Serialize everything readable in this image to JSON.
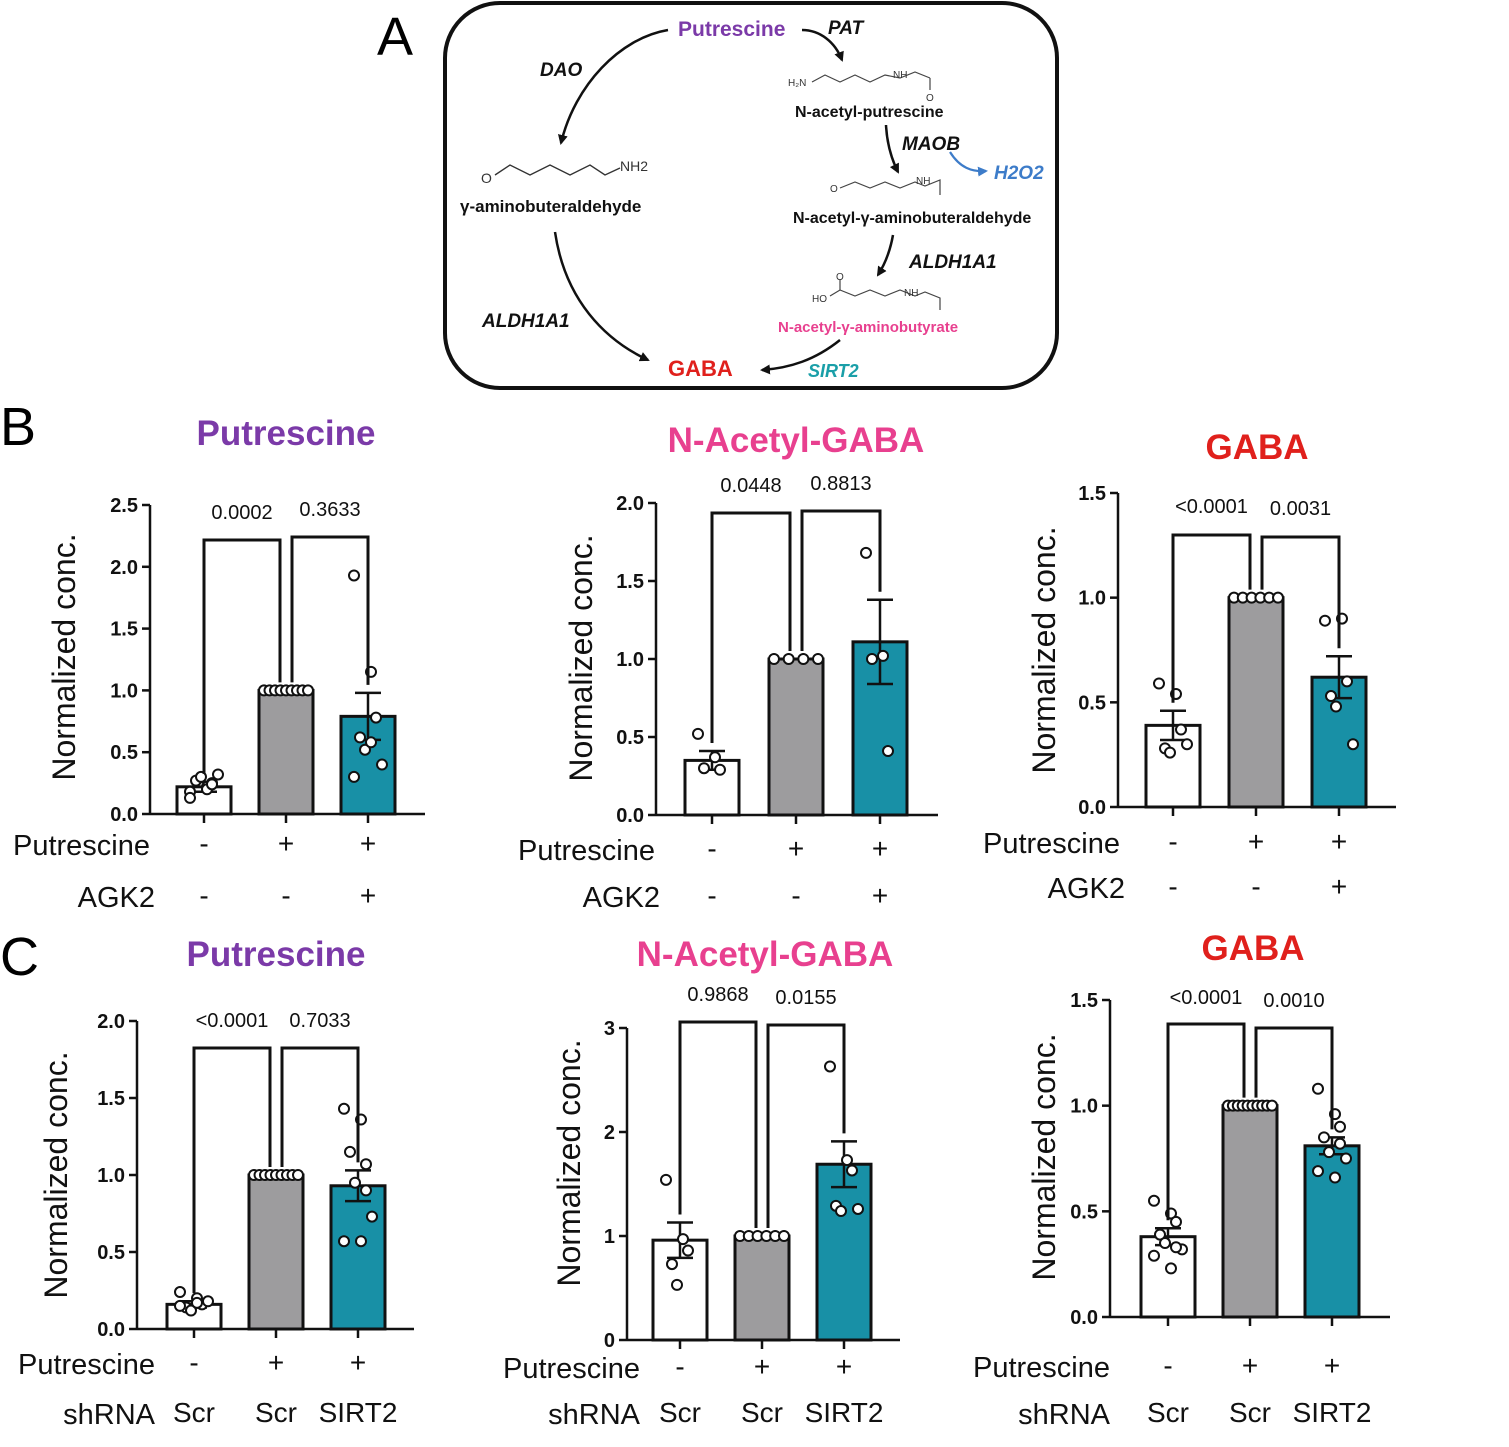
{
  "panel_letters": {
    "a": "A",
    "b": "B",
    "c": "C"
  },
  "pathway": {
    "putrescine": "Putrescine",
    "pat": "PAT",
    "dao": "DAO",
    "n_acetyl_putrescine": "N-acetyl-putrescine",
    "maob": "MAOB",
    "h2o2": "H2O2",
    "gamma_aminobuteraldehyde": "γ-aminobuteraldehyde",
    "n_acetyl_gamma_aminobuteraldehyde": "N-acetyl-γ-aminobuteraldehyde",
    "aldh1a1_right": "ALDH1A1",
    "aldh1a1_left": "ALDH1A1",
    "n_acetyl_gamma_aminobutyrate": "N-acetyl-γ-aminobutyrate",
    "sirt2": "SIRT2",
    "gaba": "GABA",
    "chem_h2n": "H₂N",
    "chem_nh": "NH",
    "chem_o": "O",
    "chem_nh2": "NH2",
    "chem_ho": "HO"
  },
  "colors": {
    "putrescine": "#7b3aa8",
    "nacetylgaba": "#e8408f",
    "gaba": "#e0201c",
    "sirt2": "#1a9fa8",
    "h2o2": "#3d7cc9",
    "bar_white": "#ffffff",
    "bar_gray": "#9d9c9e",
    "bar_teal": "#1890a6"
  },
  "chart_data": [
    {
      "type": "bar",
      "panel": "B",
      "title": "Putrescine",
      "title_color": "#7b3aa8",
      "ylabel": "Normalized conc.",
      "ylim": [
        0,
        2.5
      ],
      "yticks": [
        "0.0",
        "0.5",
        "1.0",
        "1.5",
        "2.0",
        "2.5"
      ],
      "row_labels": [
        "Putrescine",
        "AGK2"
      ],
      "conditions": [
        [
          "-",
          "-"
        ],
        [
          "+",
          "-"
        ],
        [
          "+",
          "+"
        ]
      ],
      "values": [
        0.22,
        1.0,
        0.79
      ],
      "errors": [
        0.04,
        0.0,
        0.19
      ],
      "points": [
        [
          0.18,
          0.22,
          0.25,
          0.27,
          0.3,
          0.32,
          0.13,
          0.2,
          0.24
        ],
        [
          1.0,
          1.0,
          1.0,
          1.0,
          1.0,
          1.0,
          1.0,
          1.0,
          1.0
        ],
        [
          1.93,
          1.15,
          0.78,
          0.62,
          0.52,
          0.4,
          0.3,
          0.58
        ]
      ],
      "pvalues": [
        "0.0002",
        "0.3633"
      ]
    },
    {
      "type": "bar",
      "panel": "B",
      "title": "N-Acetyl-GABA",
      "title_color": "#e8408f",
      "ylabel": "Normalized conc.",
      "ylim": [
        0,
        2.0
      ],
      "yticks": [
        "0.0",
        "0.5",
        "1.0",
        "1.5",
        "2.0"
      ],
      "row_labels": [
        "Putrescine",
        "AGK2"
      ],
      "conditions": [
        [
          "-",
          "-"
        ],
        [
          "+",
          "-"
        ],
        [
          "+",
          "+"
        ]
      ],
      "values": [
        0.35,
        1.0,
        1.11
      ],
      "errors": [
        0.06,
        0.0,
        0.27
      ],
      "points": [
        [
          0.52,
          0.37,
          0.29,
          0.3
        ],
        [
          1.0,
          1.0,
          1.0,
          1.0
        ],
        [
          1.68,
          1.02,
          0.41,
          1.0
        ]
      ],
      "pvalues": [
        "0.0448",
        "0.8813"
      ]
    },
    {
      "type": "bar",
      "panel": "B",
      "title": "GABA",
      "title_color": "#e0201c",
      "ylabel": "Normalized conc.",
      "ylim": [
        0,
        1.5
      ],
      "yticks": [
        "0.0",
        "0.5",
        "1.0",
        "1.5"
      ],
      "row_labels": [
        "Putrescine",
        "AGK2"
      ],
      "conditions": [
        [
          "-",
          "-"
        ],
        [
          "+",
          "-"
        ],
        [
          "+",
          "+"
        ]
      ],
      "values": [
        0.39,
        1.0,
        0.62
      ],
      "errors": [
        0.07,
        0.0,
        0.1
      ],
      "points": [
        [
          0.59,
          0.54,
          0.37,
          0.28,
          0.26,
          0.3
        ],
        [
          1.0,
          1.0,
          1.0,
          1.0,
          1.0,
          1.0
        ],
        [
          0.89,
          0.9,
          0.6,
          0.53,
          0.48,
          0.3
        ]
      ],
      "pvalues": [
        "<0.0001",
        "0.0031"
      ]
    },
    {
      "type": "bar",
      "panel": "C",
      "title": "Putrescine",
      "title_color": "#7b3aa8",
      "ylabel": "Normalized conc.",
      "ylim": [
        0,
        2.0
      ],
      "yticks": [
        "0.0",
        "0.5",
        "1.0",
        "1.5",
        "2.0"
      ],
      "row_labels": [
        "Putrescine",
        "shRNA"
      ],
      "conditions": [
        [
          "-",
          "Scr"
        ],
        [
          "+",
          "Scr"
        ],
        [
          "+",
          "SIRT2"
        ]
      ],
      "values": [
        0.16,
        1.0,
        0.93
      ],
      "errors": [
        0.02,
        0.0,
        0.1
      ],
      "points": [
        [
          0.24,
          0.2,
          0.16,
          0.14,
          0.12,
          0.18,
          0.15,
          0.17
        ],
        [
          1.0,
          1.0,
          1.0,
          1.0,
          1.0,
          1.0,
          1.0,
          1.0,
          1.0
        ],
        [
          1.43,
          1.36,
          1.07,
          1.15,
          0.95,
          0.73,
          0.57,
          0.57,
          0.9
        ]
      ],
      "pvalues": [
        "<0.0001",
        "0.7033"
      ]
    },
    {
      "type": "bar",
      "panel": "C",
      "title": "N-Acetyl-GABA",
      "title_color": "#e8408f",
      "ylabel": "Normalized conc.",
      "ylim": [
        0,
        3
      ],
      "yticks": [
        "0",
        "1",
        "2",
        "3"
      ],
      "row_labels": [
        "Putrescine",
        "shRNA"
      ],
      "conditions": [
        [
          "-",
          "Scr"
        ],
        [
          "+",
          "Scr"
        ],
        [
          "+",
          "SIRT2"
        ]
      ],
      "values": [
        0.96,
        1.0,
        1.69
      ],
      "errors": [
        0.17,
        0.0,
        0.22
      ],
      "points": [
        [
          1.54,
          0.97,
          0.86,
          0.73,
          0.53
        ],
        [
          1.0,
          1.0,
          1.0,
          1.0,
          1.0,
          1.0
        ],
        [
          2.63,
          1.73,
          1.63,
          1.29,
          1.24,
          1.26
        ]
      ],
      "pvalues": [
        "0.9868",
        "0.0155"
      ]
    },
    {
      "type": "bar",
      "panel": "C",
      "title": "GABA",
      "title_color": "#e0201c",
      "ylabel": "Normalized conc.",
      "ylim": [
        0,
        1.5
      ],
      "yticks": [
        "0.0",
        "0.5",
        "1.0",
        "1.5"
      ],
      "row_labels": [
        "Putrescine",
        "shRNA"
      ],
      "conditions": [
        [
          "-",
          "Scr"
        ],
        [
          "+",
          "Scr"
        ],
        [
          "+",
          "SIRT2"
        ]
      ],
      "values": [
        0.38,
        1.0,
        0.81
      ],
      "errors": [
        0.04,
        0.0,
        0.04
      ],
      "points": [
        [
          0.55,
          0.49,
          0.45,
          0.39,
          0.35,
          0.32,
          0.29,
          0.23,
          0.33
        ],
        [
          1.0,
          1.0,
          1.0,
          1.0,
          1.0,
          1.0,
          1.0,
          1.0,
          1.0,
          1.0
        ],
        [
          1.08,
          0.96,
          0.9,
          0.85,
          0.78,
          0.75,
          0.69,
          0.66,
          0.82
        ]
      ],
      "pvalues": [
        "<0.0001",
        "0.0010"
      ]
    }
  ]
}
